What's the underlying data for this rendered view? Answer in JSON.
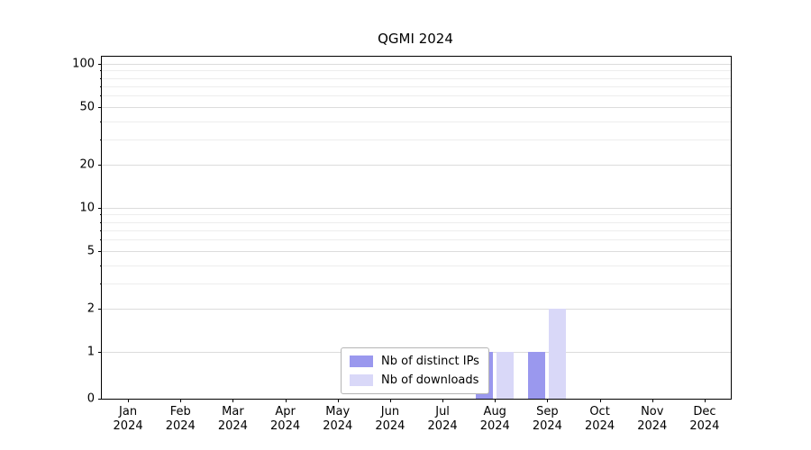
{
  "chart_data": {
    "type": "bar",
    "title": "QGMI 2024",
    "categories": [
      "Jan 2024",
      "Feb 2024",
      "Mar 2024",
      "Apr 2024",
      "May 2024",
      "Jun 2024",
      "Jul 2024",
      "Aug 2024",
      "Sep 2024",
      "Oct 2024",
      "Nov 2024",
      "Dec 2024"
    ],
    "series": [
      {
        "name": "Nb of distinct IPs",
        "color": "#9a98ee",
        "values": [
          0,
          0,
          0,
          0,
          0,
          0,
          0,
          1,
          1,
          0,
          0,
          0
        ]
      },
      {
        "name": "Nb of downloads",
        "color": "#d9d8f8",
        "values": [
          0,
          0,
          0,
          0,
          0,
          0,
          0,
          1,
          2,
          0,
          0,
          0
        ]
      }
    ],
    "yscale": "log-with-zero",
    "yticks": [
      0,
      1,
      2,
      5,
      10,
      20,
      50,
      100
    ],
    "minor_yticks": [
      3,
      4,
      6,
      7,
      8,
      9,
      30,
      40,
      60,
      70,
      80,
      90
    ],
    "ylim": [
      0,
      112
    ],
    "grid": "horizontal",
    "legend_position": "bottom-center-inside"
  }
}
